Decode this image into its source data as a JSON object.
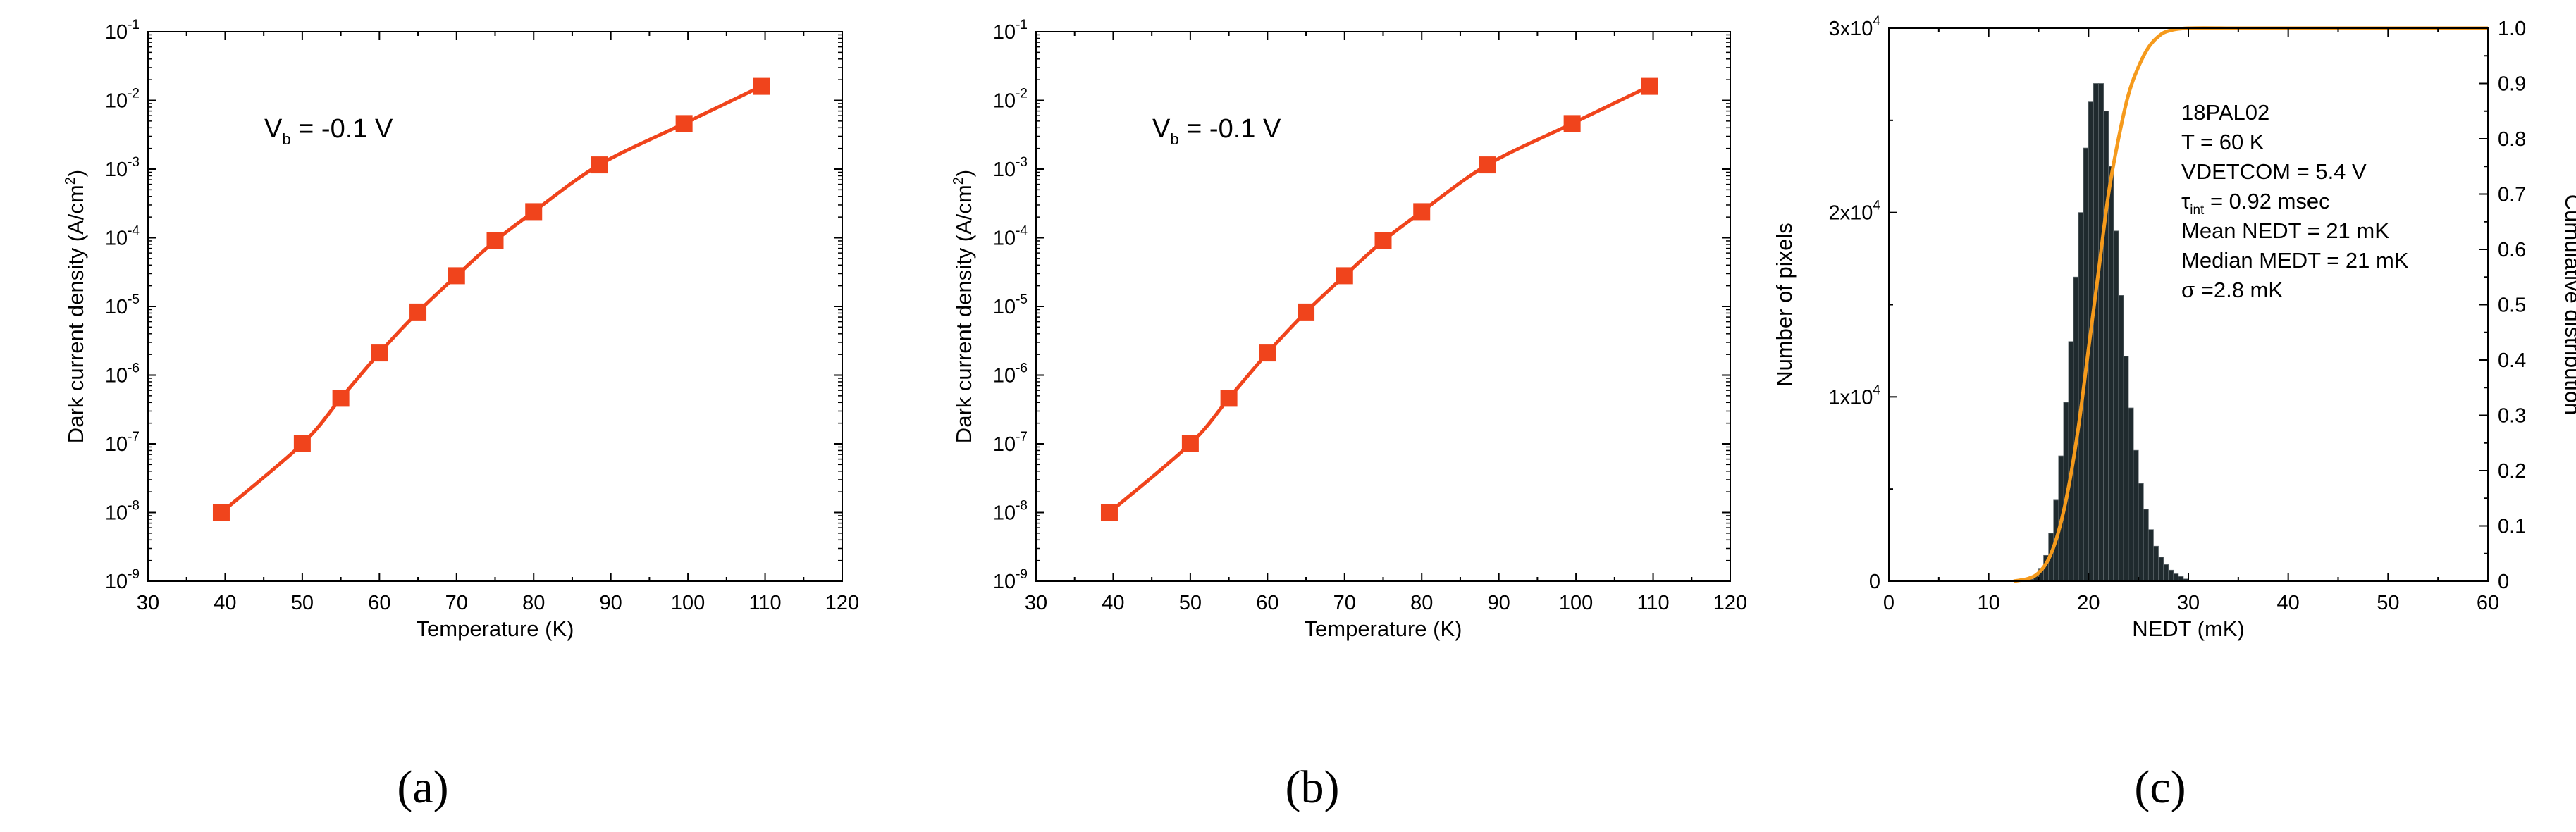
{
  "chart_data": [
    {
      "id": "a",
      "type": "line",
      "panel_label": "(a)",
      "annotation": {
        "main": "V",
        "sub": "b",
        "rest": " = -0.1 V"
      },
      "xlabel": "Temperature (K)",
      "ylabel": {
        "main": "Dark current density (A/cm",
        "sup": "2",
        "end": ")"
      },
      "xlim": [
        30,
        120
      ],
      "xticks": [
        "30",
        "40",
        "50",
        "60",
        "70",
        "80",
        "90",
        "100",
        "110",
        "120"
      ],
      "ylim_exp": [
        -9,
        -1
      ],
      "yticks": [
        {
          "base": "10",
          "exp": "-9"
        },
        {
          "base": "10",
          "exp": "-8"
        },
        {
          "base": "10",
          "exp": "-7"
        },
        {
          "base": "10",
          "exp": "-6"
        },
        {
          "base": "10",
          "exp": "-5"
        },
        {
          "base": "10",
          "exp": "-4"
        },
        {
          "base": "10",
          "exp": "-3"
        },
        {
          "base": "10",
          "exp": "-2"
        },
        {
          "base": "10",
          "exp": "-1"
        }
      ],
      "series": [
        {
          "name": "Dark current density",
          "x": [
            39.5,
            50,
            55,
            60,
            65,
            70,
            75,
            80,
            88.5,
            99.5,
            109.5
          ],
          "y": [
            1e-08,
            1e-07,
            4.6e-07,
            2.1e-06,
            8.3e-06,
            2.8e-05,
            9e-05,
            0.00024,
            0.00115,
            0.0046,
            0.016
          ]
        }
      ],
      "colors": {
        "series": "#f0441c"
      }
    },
    {
      "id": "b",
      "type": "line",
      "panel_label": "(b)",
      "annotation": {
        "main": "V",
        "sub": "b",
        "rest": " = -0.1 V"
      },
      "xlabel": "Temperature (K)",
      "ylabel": {
        "main": "Dark current density (A/cm",
        "sup": "2",
        "end": ")"
      },
      "xlim": [
        30,
        120
      ],
      "xticks": [
        "30",
        "40",
        "50",
        "60",
        "70",
        "80",
        "90",
        "100",
        "110",
        "120"
      ],
      "ylim_exp": [
        -9,
        -1
      ],
      "yticks": [
        {
          "base": "10",
          "exp": "-9"
        },
        {
          "base": "10",
          "exp": "-8"
        },
        {
          "base": "10",
          "exp": "-7"
        },
        {
          "base": "10",
          "exp": "-6"
        },
        {
          "base": "10",
          "exp": "-5"
        },
        {
          "base": "10",
          "exp": "-4"
        },
        {
          "base": "10",
          "exp": "-3"
        },
        {
          "base": "10",
          "exp": "-2"
        },
        {
          "base": "10",
          "exp": "-1"
        }
      ],
      "series": [
        {
          "name": "Dark current density",
          "x": [
            39.5,
            50,
            55,
            60,
            65,
            70,
            75,
            80,
            88.5,
            99.5,
            109.5
          ],
          "y": [
            1e-08,
            1e-07,
            4.6e-07,
            2.1e-06,
            8.3e-06,
            2.8e-05,
            9e-05,
            0.00024,
            0.00115,
            0.0046,
            0.016
          ]
        }
      ],
      "colors": {
        "series": "#f0441c"
      }
    },
    {
      "id": "c",
      "type": "bar",
      "panel_label": "(c)",
      "xlabel": "NEDT (mK)",
      "ylabel_left": "Number of pixels",
      "ylabel_right": "Cumulative distribution",
      "xlim": [
        0,
        60
      ],
      "xticks": [
        "0",
        "10",
        "20",
        "30",
        "40",
        "50",
        "60"
      ],
      "ylim_left": [
        0,
        30000
      ],
      "yticks_left": [
        {
          "base": "0",
          "exp": ""
        },
        {
          "base": "1x10",
          "exp": "4"
        },
        {
          "base": "2x10",
          "exp": "4"
        },
        {
          "base": "3x10",
          "exp": "4"
        }
      ],
      "ylim_right": [
        0,
        1
      ],
      "yticks_right": [
        "0",
        "0.1",
        "0.2",
        "0.3",
        "0.4",
        "0.5",
        "0.6",
        "0.7",
        "0.8",
        "0.9",
        "1.0"
      ],
      "histogram": {
        "bin_width": 0.5,
        "bin_start": [
          14,
          14.5,
          15,
          15.5,
          16,
          16.5,
          17,
          17.5,
          18,
          18.5,
          19,
          19.5,
          20,
          20.5,
          21,
          21.5,
          22,
          22.5,
          23,
          23.5,
          24,
          24.5,
          25,
          25.5,
          26,
          26.5,
          27,
          27.5,
          28,
          28.5,
          29,
          29.5
        ],
        "counts": [
          100,
          300,
          700,
          1400,
          2600,
          4400,
          6800,
          9700,
          13000,
          16500,
          20000,
          23500,
          26000,
          27000,
          27000,
          25500,
          22500,
          19000,
          15500,
          12200,
          9400,
          7100,
          5300,
          3900,
          2800,
          1900,
          1300,
          900,
          600,
          400,
          250,
          120
        ]
      },
      "cumulative": {
        "x": [
          12.5,
          14,
          15,
          16,
          17,
          18,
          19,
          20,
          21,
          22,
          23,
          24,
          25,
          26,
          27,
          28,
          30,
          35,
          40,
          50,
          60
        ],
        "y": [
          0,
          0.005,
          0.015,
          0.04,
          0.09,
          0.17,
          0.28,
          0.42,
          0.56,
          0.7,
          0.8,
          0.88,
          0.93,
          0.965,
          0.985,
          0.995,
          1.0,
          1.0,
          1.0,
          1.0,
          1.0
        ]
      },
      "info_lines": [
        {
          "text": "18PAL02"
        },
        {
          "text": "T = 60 K"
        },
        {
          "text": "VDETCOM = 5.4 V"
        },
        {
          "pre": "τ",
          "sub": "int",
          "rest": " = 0.92 msec"
        },
        {
          "text": "Mean NEDT = 21 mK"
        },
        {
          "text": "Median MEDT = 21 mK"
        },
        {
          "text": "σ =2.8 mK"
        }
      ],
      "colors": {
        "bars": "#1f2a2e",
        "cumulative": "#f59a1c"
      }
    }
  ]
}
